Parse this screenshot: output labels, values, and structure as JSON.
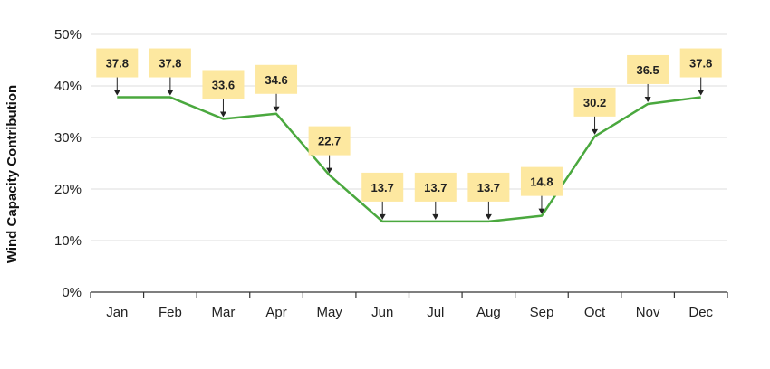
{
  "chart_data": {
    "type": "line",
    "categories": [
      "Jan",
      "Feb",
      "Mar",
      "Apr",
      "May",
      "Jun",
      "Jul",
      "Aug",
      "Sep",
      "Oct",
      "Nov",
      "Dec"
    ],
    "series": [
      {
        "values": [
          37.8,
          37.8,
          33.6,
          34.6,
          22.7,
          13.7,
          13.7,
          13.7,
          14.8,
          30.2,
          36.5,
          37.8
        ]
      }
    ],
    "data_labels": [
      "37.8",
      "37.8",
      "33.6",
      "34.6",
      "22.7",
      "13.7",
      "13.7",
      "13.7",
      "14.8",
      "30.2",
      "36.5",
      "37.8"
    ],
    "title": "",
    "xlabel": "",
    "ylabel": "Wind Capacity Contribution",
    "ylim": [
      0,
      50
    ],
    "yticks": [
      0,
      10,
      20,
      30,
      40,
      50
    ],
    "ytick_labels": [
      "0%",
      "10%",
      "20%",
      "30%",
      "40%",
      "50%"
    ],
    "grid": true,
    "legend": "none",
    "colors": {
      "line": "#4aa83e",
      "label_box": "#fde8a0",
      "grid": "#dcdcdc",
      "axis": "#333333"
    }
  }
}
